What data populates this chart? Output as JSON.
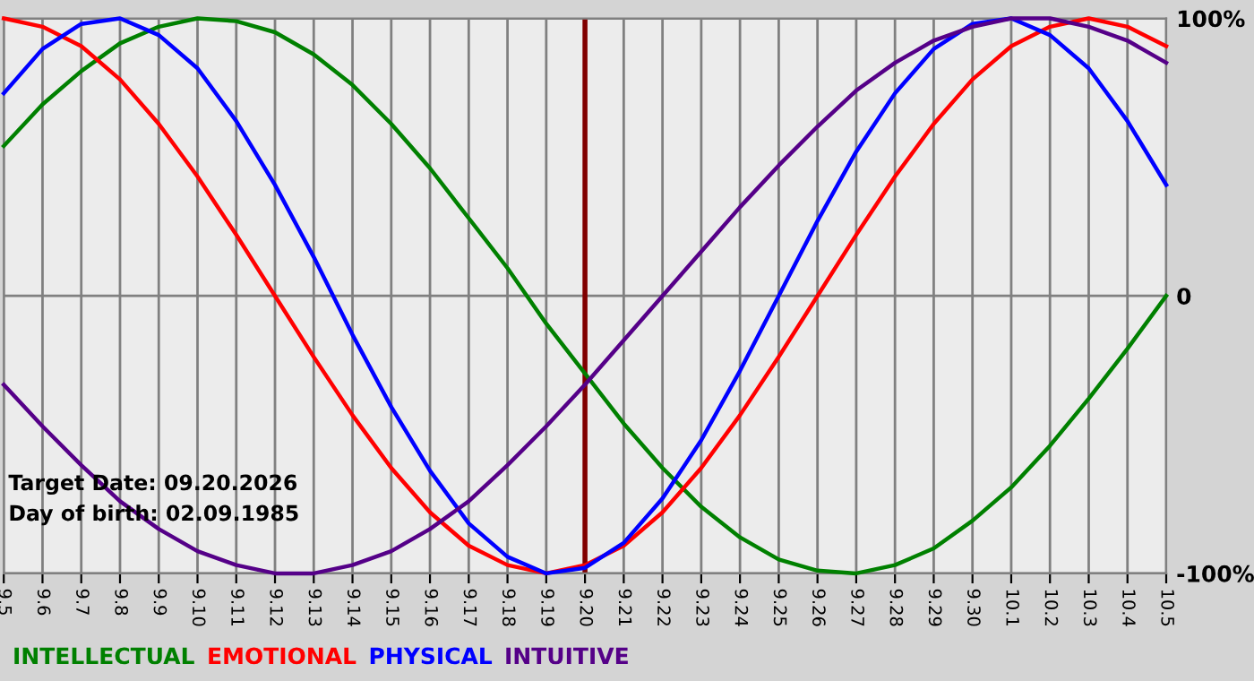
{
  "chart_data": {
    "type": "line",
    "categories": [
      "9.5",
      "9.6",
      "9.7",
      "9.8",
      "9.9",
      "9.10",
      "9.11",
      "9.12",
      "9.13",
      "9.14",
      "9.15",
      "9.16",
      "9.17",
      "9.18",
      "9.19",
      "9.20",
      "9.21",
      "9.22",
      "9.23",
      "9.24",
      "9.25",
      "9.26",
      "9.27",
      "9.28",
      "9.29",
      "9.30",
      "10.1",
      "10.2",
      "10.3",
      "10.4",
      "10.5"
    ],
    "series": [
      {
        "name": "INTELLECTUAL",
        "color": "#008000",
        "values": [
          54,
          69,
          81,
          91,
          97,
          100,
          99,
          95,
          87,
          76,
          62,
          46,
          28,
          10,
          -10,
          -28,
          -46,
          -62,
          -76,
          -87,
          -95,
          -99,
          -100,
          -97,
          -91,
          -81,
          -69,
          -54,
          -37,
          -19,
          0
        ]
      },
      {
        "name": "EMOTIONAL",
        "color": "#ff0000",
        "values": [
          100,
          97,
          90,
          78,
          62,
          43,
          22,
          0,
          -22,
          -43,
          -62,
          -78,
          -90,
          -97,
          -100,
          -97,
          -90,
          -78,
          -62,
          -43,
          -22,
          0,
          22,
          43,
          62,
          78,
          90,
          97,
          100,
          97,
          90
        ]
      },
      {
        "name": "PHYSICAL",
        "color": "#0000ff",
        "values": [
          73,
          89,
          98,
          100,
          94,
          82,
          63,
          40,
          14,
          -14,
          -40,
          -63,
          -82,
          -94,
          -100,
          -98,
          -89,
          -73,
          -52,
          -27,
          0,
          27,
          52,
          73,
          89,
          98,
          100,
          94,
          82,
          63,
          40
        ]
      },
      {
        "name": "INTUITIVE",
        "color": "#550088",
        "values": [
          -32,
          -47,
          -61,
          -74,
          -84,
          -92,
          -97,
          -100,
          -100,
          -97,
          -92,
          -84,
          -74,
          -61,
          -47,
          -32,
          -16,
          0,
          16,
          32,
          47,
          61,
          74,
          84,
          92,
          97,
          100,
          100,
          97,
          92,
          84
        ]
      }
    ],
    "ylim": [
      -100,
      100
    ],
    "yticks": [
      {
        "value": -100,
        "label": "-100%"
      },
      0,
      {
        "value": 100,
        "label": "100%"
      }
    ],
    "ref_lines": [
      {
        "axis": "x",
        "value": "9.20",
        "color": "#800000"
      }
    ],
    "annotations": [
      "Target Date: 09.20.2026",
      "Day of birth: 02.09.1985"
    ],
    "grid": true,
    "legend": "bottom",
    "marker": "none",
    "line_style": "solid"
  }
}
